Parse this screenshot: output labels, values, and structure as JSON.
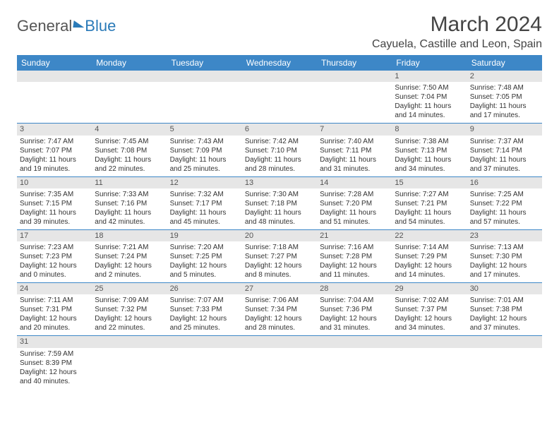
{
  "logo": {
    "general": "General",
    "blue": "Blue"
  },
  "header": {
    "month_title": "March 2024",
    "location": "Cayuela, Castille and Leon, Spain"
  },
  "colors": {
    "header_bg": "#3d87c7",
    "header_text": "#ffffff",
    "daynum_bg": "#e6e6e6",
    "row_border": "#3d87c7",
    "text": "#333333",
    "logo_blue": "#2a7ab8"
  },
  "weekdays": [
    "Sunday",
    "Monday",
    "Tuesday",
    "Wednesday",
    "Thursday",
    "Friday",
    "Saturday"
  ],
  "weeks": [
    [
      {
        "day": "",
        "sunrise": "",
        "sunset": "",
        "daylight1": "",
        "daylight2": ""
      },
      {
        "day": "",
        "sunrise": "",
        "sunset": "",
        "daylight1": "",
        "daylight2": ""
      },
      {
        "day": "",
        "sunrise": "",
        "sunset": "",
        "daylight1": "",
        "daylight2": ""
      },
      {
        "day": "",
        "sunrise": "",
        "sunset": "",
        "daylight1": "",
        "daylight2": ""
      },
      {
        "day": "",
        "sunrise": "",
        "sunset": "",
        "daylight1": "",
        "daylight2": ""
      },
      {
        "day": "1",
        "sunrise": "Sunrise: 7:50 AM",
        "sunset": "Sunset: 7:04 PM",
        "daylight1": "Daylight: 11 hours",
        "daylight2": "and 14 minutes."
      },
      {
        "day": "2",
        "sunrise": "Sunrise: 7:48 AM",
        "sunset": "Sunset: 7:05 PM",
        "daylight1": "Daylight: 11 hours",
        "daylight2": "and 17 minutes."
      }
    ],
    [
      {
        "day": "3",
        "sunrise": "Sunrise: 7:47 AM",
        "sunset": "Sunset: 7:07 PM",
        "daylight1": "Daylight: 11 hours",
        "daylight2": "and 19 minutes."
      },
      {
        "day": "4",
        "sunrise": "Sunrise: 7:45 AM",
        "sunset": "Sunset: 7:08 PM",
        "daylight1": "Daylight: 11 hours",
        "daylight2": "and 22 minutes."
      },
      {
        "day": "5",
        "sunrise": "Sunrise: 7:43 AM",
        "sunset": "Sunset: 7:09 PM",
        "daylight1": "Daylight: 11 hours",
        "daylight2": "and 25 minutes."
      },
      {
        "day": "6",
        "sunrise": "Sunrise: 7:42 AM",
        "sunset": "Sunset: 7:10 PM",
        "daylight1": "Daylight: 11 hours",
        "daylight2": "and 28 minutes."
      },
      {
        "day": "7",
        "sunrise": "Sunrise: 7:40 AM",
        "sunset": "Sunset: 7:11 PM",
        "daylight1": "Daylight: 11 hours",
        "daylight2": "and 31 minutes."
      },
      {
        "day": "8",
        "sunrise": "Sunrise: 7:38 AM",
        "sunset": "Sunset: 7:13 PM",
        "daylight1": "Daylight: 11 hours",
        "daylight2": "and 34 minutes."
      },
      {
        "day": "9",
        "sunrise": "Sunrise: 7:37 AM",
        "sunset": "Sunset: 7:14 PM",
        "daylight1": "Daylight: 11 hours",
        "daylight2": "and 37 minutes."
      }
    ],
    [
      {
        "day": "10",
        "sunrise": "Sunrise: 7:35 AM",
        "sunset": "Sunset: 7:15 PM",
        "daylight1": "Daylight: 11 hours",
        "daylight2": "and 39 minutes."
      },
      {
        "day": "11",
        "sunrise": "Sunrise: 7:33 AM",
        "sunset": "Sunset: 7:16 PM",
        "daylight1": "Daylight: 11 hours",
        "daylight2": "and 42 minutes."
      },
      {
        "day": "12",
        "sunrise": "Sunrise: 7:32 AM",
        "sunset": "Sunset: 7:17 PM",
        "daylight1": "Daylight: 11 hours",
        "daylight2": "and 45 minutes."
      },
      {
        "day": "13",
        "sunrise": "Sunrise: 7:30 AM",
        "sunset": "Sunset: 7:18 PM",
        "daylight1": "Daylight: 11 hours",
        "daylight2": "and 48 minutes."
      },
      {
        "day": "14",
        "sunrise": "Sunrise: 7:28 AM",
        "sunset": "Sunset: 7:20 PM",
        "daylight1": "Daylight: 11 hours",
        "daylight2": "and 51 minutes."
      },
      {
        "day": "15",
        "sunrise": "Sunrise: 7:27 AM",
        "sunset": "Sunset: 7:21 PM",
        "daylight1": "Daylight: 11 hours",
        "daylight2": "and 54 minutes."
      },
      {
        "day": "16",
        "sunrise": "Sunrise: 7:25 AM",
        "sunset": "Sunset: 7:22 PM",
        "daylight1": "Daylight: 11 hours",
        "daylight2": "and 57 minutes."
      }
    ],
    [
      {
        "day": "17",
        "sunrise": "Sunrise: 7:23 AM",
        "sunset": "Sunset: 7:23 PM",
        "daylight1": "Daylight: 12 hours",
        "daylight2": "and 0 minutes."
      },
      {
        "day": "18",
        "sunrise": "Sunrise: 7:21 AM",
        "sunset": "Sunset: 7:24 PM",
        "daylight1": "Daylight: 12 hours",
        "daylight2": "and 2 minutes."
      },
      {
        "day": "19",
        "sunrise": "Sunrise: 7:20 AM",
        "sunset": "Sunset: 7:25 PM",
        "daylight1": "Daylight: 12 hours",
        "daylight2": "and 5 minutes."
      },
      {
        "day": "20",
        "sunrise": "Sunrise: 7:18 AM",
        "sunset": "Sunset: 7:27 PM",
        "daylight1": "Daylight: 12 hours",
        "daylight2": "and 8 minutes."
      },
      {
        "day": "21",
        "sunrise": "Sunrise: 7:16 AM",
        "sunset": "Sunset: 7:28 PM",
        "daylight1": "Daylight: 12 hours",
        "daylight2": "and 11 minutes."
      },
      {
        "day": "22",
        "sunrise": "Sunrise: 7:14 AM",
        "sunset": "Sunset: 7:29 PM",
        "daylight1": "Daylight: 12 hours",
        "daylight2": "and 14 minutes."
      },
      {
        "day": "23",
        "sunrise": "Sunrise: 7:13 AM",
        "sunset": "Sunset: 7:30 PM",
        "daylight1": "Daylight: 12 hours",
        "daylight2": "and 17 minutes."
      }
    ],
    [
      {
        "day": "24",
        "sunrise": "Sunrise: 7:11 AM",
        "sunset": "Sunset: 7:31 PM",
        "daylight1": "Daylight: 12 hours",
        "daylight2": "and 20 minutes."
      },
      {
        "day": "25",
        "sunrise": "Sunrise: 7:09 AM",
        "sunset": "Sunset: 7:32 PM",
        "daylight1": "Daylight: 12 hours",
        "daylight2": "and 22 minutes."
      },
      {
        "day": "26",
        "sunrise": "Sunrise: 7:07 AM",
        "sunset": "Sunset: 7:33 PM",
        "daylight1": "Daylight: 12 hours",
        "daylight2": "and 25 minutes."
      },
      {
        "day": "27",
        "sunrise": "Sunrise: 7:06 AM",
        "sunset": "Sunset: 7:34 PM",
        "daylight1": "Daylight: 12 hours",
        "daylight2": "and 28 minutes."
      },
      {
        "day": "28",
        "sunrise": "Sunrise: 7:04 AM",
        "sunset": "Sunset: 7:36 PM",
        "daylight1": "Daylight: 12 hours",
        "daylight2": "and 31 minutes."
      },
      {
        "day": "29",
        "sunrise": "Sunrise: 7:02 AM",
        "sunset": "Sunset: 7:37 PM",
        "daylight1": "Daylight: 12 hours",
        "daylight2": "and 34 minutes."
      },
      {
        "day": "30",
        "sunrise": "Sunrise: 7:01 AM",
        "sunset": "Sunset: 7:38 PM",
        "daylight1": "Daylight: 12 hours",
        "daylight2": "and 37 minutes."
      }
    ],
    [
      {
        "day": "31",
        "sunrise": "Sunrise: 7:59 AM",
        "sunset": "Sunset: 8:39 PM",
        "daylight1": "Daylight: 12 hours",
        "daylight2": "and 40 minutes."
      },
      {
        "day": "",
        "sunrise": "",
        "sunset": "",
        "daylight1": "",
        "daylight2": ""
      },
      {
        "day": "",
        "sunrise": "",
        "sunset": "",
        "daylight1": "",
        "daylight2": ""
      },
      {
        "day": "",
        "sunrise": "",
        "sunset": "",
        "daylight1": "",
        "daylight2": ""
      },
      {
        "day": "",
        "sunrise": "",
        "sunset": "",
        "daylight1": "",
        "daylight2": ""
      },
      {
        "day": "",
        "sunrise": "",
        "sunset": "",
        "daylight1": "",
        "daylight2": ""
      },
      {
        "day": "",
        "sunrise": "",
        "sunset": "",
        "daylight1": "",
        "daylight2": ""
      }
    ]
  ]
}
